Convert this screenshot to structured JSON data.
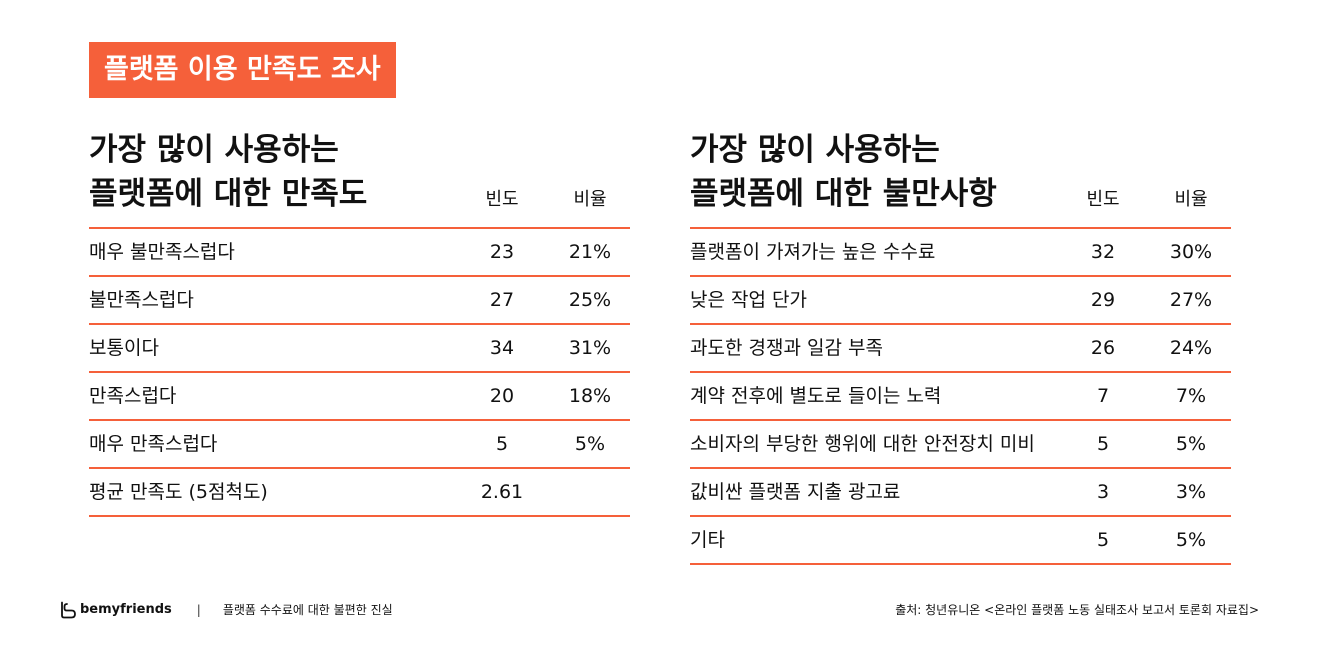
{
  "title": "플랫폼 이용 만족도 조사",
  "left_table": {
    "heading_line1": "가장 많이 사용하는",
    "heading_line2": "플랫폼에 대한 만족도",
    "col_freq": "빈도",
    "col_ratio": "비율",
    "rows": [
      {
        "label": "매우 불만족스럽다",
        "freq": "23",
        "ratio": "21%"
      },
      {
        "label": "불만족스럽다",
        "freq": "27",
        "ratio": "25%"
      },
      {
        "label": "보통이다",
        "freq": "34",
        "ratio": "31%"
      },
      {
        "label": "만족스럽다",
        "freq": "20",
        "ratio": "18%"
      },
      {
        "label": "매우 만족스럽다",
        "freq": "5",
        "ratio": "5%"
      },
      {
        "label": "평균 만족도 (5점척도)",
        "freq": "2.61",
        "ratio": ""
      }
    ]
  },
  "right_table": {
    "heading_line1": "가장 많이 사용하는",
    "heading_line2": "플랫폼에 대한 불만사항",
    "col_freq": "빈도",
    "col_ratio": "비율",
    "rows": [
      {
        "label": "플랫폼이 가져가는 높은 수수료",
        "freq": "32",
        "ratio": "30%"
      },
      {
        "label": "낮은 작업 단가",
        "freq": "29",
        "ratio": "27%"
      },
      {
        "label": "과도한 경쟁과 일감 부족",
        "freq": "26",
        "ratio": "24%"
      },
      {
        "label": "계약 전후에 별도로 들이는 노력",
        "freq": "7",
        "ratio": "7%"
      },
      {
        "label": "소비자의 부당한 행위에 대한 안전장치 미비",
        "freq": "5",
        "ratio": "5%"
      },
      {
        "label": "값비싼 플랫폼 지출 광고료",
        "freq": "3",
        "ratio": "3%"
      },
      {
        "label": "기타",
        "freq": "5",
        "ratio": "5%"
      }
    ]
  },
  "footer": {
    "logo_icon": "bemyfriends-logo-icon",
    "brand": "bemyfriends",
    "separator": "|",
    "subtitle": "플랫폼 수수료에 대한 불편한 진실",
    "source": "출처: 청년유니온 <온라인 플랫폼 노동 실태조사 보고서 토론회 자료집>"
  },
  "colors": {
    "accent": "#f5603a",
    "text": "#111111",
    "background": "#ffffff"
  }
}
